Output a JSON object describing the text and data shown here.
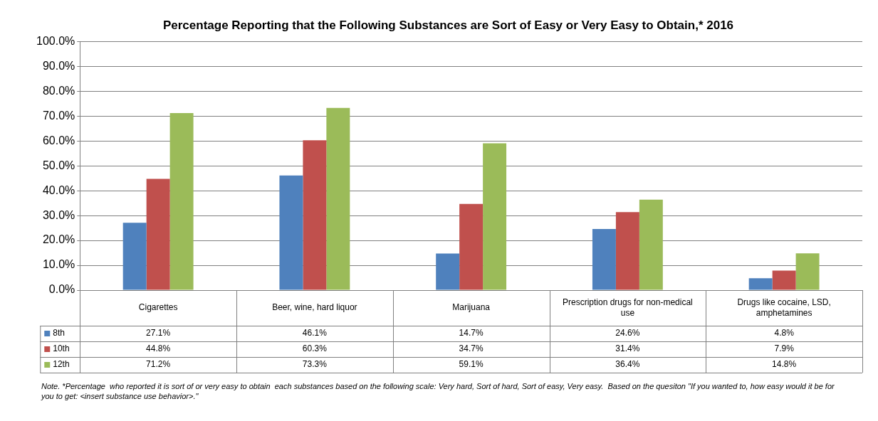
{
  "chart_data": {
    "type": "bar",
    "title": "Percentage Reporting that the Following Substances are Sort of Easy or Very Easy to Obtain,* 2016",
    "categories": [
      "Cigarettes",
      "Beer, wine, hard liquor",
      "Marijuana",
      "Prescription drugs for non-medical use",
      "Drugs like cocaine, LSD, amphetamines"
    ],
    "series": [
      {
        "name": "8th",
        "color": "#4f81bd",
        "values": [
          27.1,
          46.1,
          14.7,
          24.6,
          4.8
        ],
        "value_labels": [
          "27.1%",
          "46.1%",
          "14.7%",
          "24.6%",
          "4.8%"
        ]
      },
      {
        "name": "10th",
        "color": "#c0504d",
        "values": [
          44.8,
          60.3,
          34.7,
          31.4,
          7.9
        ],
        "value_labels": [
          "44.8%",
          "60.3%",
          "34.7%",
          "31.4%",
          "7.9%"
        ]
      },
      {
        "name": "12th",
        "color": "#9bbb59",
        "values": [
          71.2,
          73.3,
          59.1,
          36.4,
          14.8
        ],
        "value_labels": [
          "71.2%",
          "73.3%",
          "59.1%",
          "36.4%",
          "14.8%"
        ]
      }
    ],
    "ylim": [
      0,
      100
    ],
    "yticks": [
      {
        "value": 0,
        "label": "0.0%"
      },
      {
        "value": 10,
        "label": "10.0%"
      },
      {
        "value": 20,
        "label": "20.0%"
      },
      {
        "value": 30,
        "label": "30.0%"
      },
      {
        "value": 40,
        "label": "40.0%"
      },
      {
        "value": 50,
        "label": "50.0%"
      },
      {
        "value": 60,
        "label": "60.0%"
      },
      {
        "value": 70,
        "label": "70.0%"
      },
      {
        "value": 80,
        "label": "80.0%"
      },
      {
        "value": 90,
        "label": "90.0%"
      },
      {
        "value": 100,
        "label": "100.0%"
      }
    ],
    "grid": "y",
    "legend": "bottom",
    "annotations": [
      "Note. *Percentage  who reported it is sort of or very easy to obtain  each substances based on the following scale: Very hard, Sort of hard, Sort of easy, Very easy.  Based on the quesiton \"If you wanted to, how easy would it be for you to get: <insert substance use behavior>.\""
    ]
  }
}
